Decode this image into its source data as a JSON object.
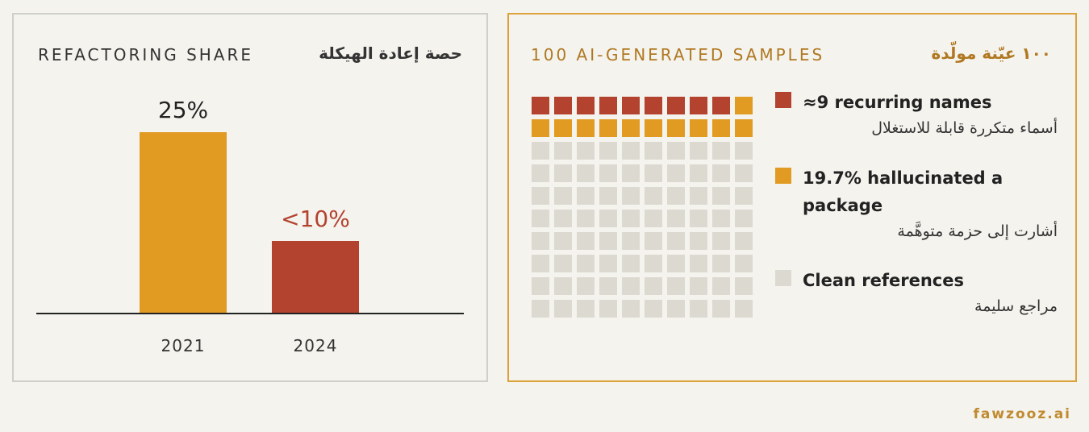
{
  "colors": {
    "orange": "#e19b22",
    "red": "#b3422e",
    "gray": "#dcd9d0",
    "gold_text": "#b07821",
    "background": "#f4f3ee"
  },
  "left_panel": {
    "title_en": "REFACTORING SHARE",
    "title_ar": "حصة إعادة الهيكلة"
  },
  "right_panel": {
    "title_en": "100 AI-GENERATED SAMPLES",
    "title_ar": "١٠٠ عيّنة مولّدة",
    "legend": [
      {
        "text_en": "≈9 recurring names",
        "text_ar": "أسماء متكررة قابلة للاستغلال",
        "color": "#b3422e"
      },
      {
        "text_en": "19.7% hallucinated a package",
        "text_ar": "أشارت إلى حزمة متوهَّمة",
        "color": "#e19b22"
      },
      {
        "text_en": "Clean references",
        "text_ar": "مراجع سليمة",
        "color": "#dcd9d0"
      }
    ]
  },
  "chart_data": [
    {
      "type": "bar",
      "title": "REFACTORING SHARE",
      "categories": [
        "2021",
        "2024"
      ],
      "values": [
        25,
        10
      ],
      "data_labels": [
        "25%",
        "<10%"
      ],
      "colors": [
        "#e19b22",
        "#b3422e"
      ],
      "ylim": [
        0,
        30
      ]
    },
    {
      "type": "waffle",
      "title": "100 AI-GENERATED SAMPLES",
      "total": 100,
      "grid": [
        10,
        10
      ],
      "segments": [
        {
          "label": "≈9 recurring names",
          "count": 9,
          "color": "#b3422e"
        },
        {
          "label": "19.7% hallucinated a package",
          "count": 11,
          "color": "#e19b22"
        },
        {
          "label": "Clean references",
          "count": 80,
          "color": "#dcd9d0"
        }
      ]
    }
  ],
  "footer": {
    "brand": "fawzooz.ai"
  }
}
